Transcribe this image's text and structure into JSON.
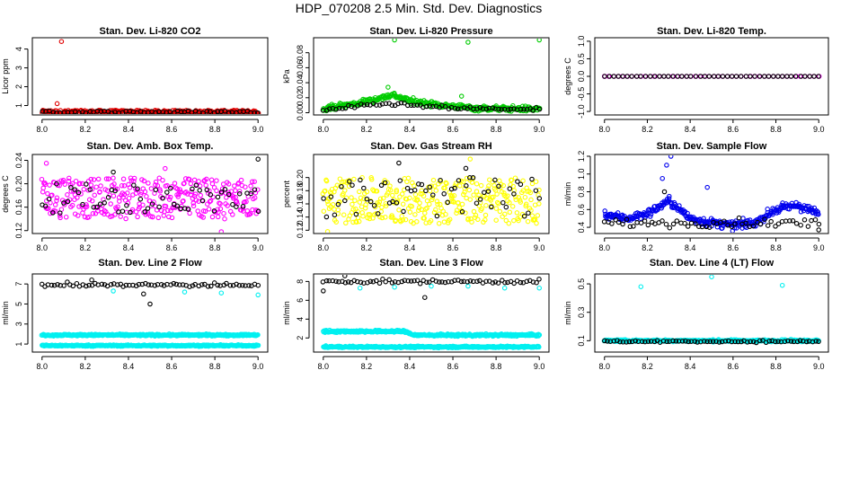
{
  "figure": {
    "title": "HDP_070208  2.5 Min. Std. Dev. Diagnostics",
    "colors": {
      "black": "#000000",
      "red": "#e00000",
      "green": "#00cc00",
      "magenta": "#ff00ff",
      "yellow": "#ffff00",
      "blue": "#0000ee",
      "cyan": "#00f0f0"
    }
  },
  "chart_data": [
    {
      "type": "scatter",
      "title": "Stan. Dev. Li-820 CO2",
      "xlabel": "",
      "ylabel": "Licor ppm",
      "xlim": [
        7.98,
        9.02
      ],
      "ylim": [
        0.5,
        4.6
      ],
      "xticks": [
        8.0,
        8.2,
        8.4,
        8.6,
        8.8,
        9.0
      ],
      "xtick_labels": [
        "8.0",
        "8.2",
        "8.4",
        "8.6",
        "8.8",
        "9.0"
      ],
      "yticks": [
        1,
        2,
        3,
        4
      ],
      "ytick_labels": [
        "1",
        "2",
        "3",
        "4"
      ],
      "series": [
        {
          "name": "main",
          "color": "red",
          "band": {
            "lo": 0.55,
            "hi": 0.75,
            "n": 330
          },
          "points": [
            [
              8.09,
              4.4
            ],
            [
              8.07,
              1.1
            ]
          ]
        },
        {
          "name": "black",
          "color": "black",
          "band": {
            "lo": 0.6,
            "hi": 0.72,
            "n": 60
          },
          "points": []
        }
      ]
    },
    {
      "type": "scatter",
      "title": "Stan. Dev. Li-820 Pressure",
      "xlabel": "",
      "ylabel": "kPa",
      "xlim": [
        7.98,
        9.02
      ],
      "ylim": [
        -0.003,
        0.1
      ],
      "xticks": [
        8.0,
        8.2,
        8.4,
        8.6,
        8.8,
        9.0
      ],
      "xtick_labels": [
        "8.0",
        "8.2",
        "8.4",
        "8.6",
        "8.8",
        "9.0"
      ],
      "yticks": [
        0.0,
        0.02,
        0.04,
        0.06,
        0.08
      ],
      "ytick_labels": [
        "0.00",
        "0.02",
        "0.04",
        "0.06",
        "0.08"
      ],
      "series": [
        {
          "name": "main",
          "color": "green",
          "curve": [
            [
              8.0,
              0.006
            ],
            [
              8.15,
              0.012
            ],
            [
              8.27,
              0.02
            ],
            [
              8.32,
              0.024
            ],
            [
              8.4,
              0.016
            ],
            [
              8.55,
              0.01
            ],
            [
              8.7,
              0.006
            ],
            [
              9.0,
              0.005
            ]
          ],
          "spread": 0.006,
          "n": 320,
          "points": [
            [
              8.33,
              0.097
            ],
            [
              8.67,
              0.094
            ],
            [
              9.0,
              0.097
            ],
            [
              8.3,
              0.034
            ],
            [
              8.64,
              0.022
            ]
          ]
        },
        {
          "name": "black",
          "color": "black",
          "curve": [
            [
              8.0,
              0.004
            ],
            [
              8.3,
              0.012
            ],
            [
              8.6,
              0.006
            ],
            [
              9.0,
              0.004
            ]
          ],
          "spread": 0.004,
          "n": 70,
          "points": []
        }
      ]
    },
    {
      "type": "scatter",
      "title": "Stan. Dev. Li-820 Temp.",
      "xlabel": "",
      "ylabel": "degrees C",
      "xlim": [
        7.98,
        9.02
      ],
      "ylim": [
        -1.1,
        1.1
      ],
      "xticks": [
        8.0,
        8.2,
        8.4,
        8.6,
        8.8,
        9.0
      ],
      "xtick_labels": [
        "8.0",
        "8.2",
        "8.4",
        "8.6",
        "8.8",
        "9.0"
      ],
      "yticks": [
        -1.0,
        -0.5,
        0.0,
        0.5,
        1.0
      ],
      "ytick_labels": [
        "-1.0",
        "-0.5",
        "0.0",
        "0.5",
        "1.0"
      ],
      "series": [
        {
          "name": "main",
          "color": "magenta",
          "flat": 0.0,
          "n": 48,
          "points": [
            [
              8.0,
              0.0
            ]
          ]
        },
        {
          "name": "black",
          "color": "black",
          "flat": 0.0,
          "n": 48,
          "points": []
        }
      ]
    },
    {
      "type": "scatter",
      "title": "Stan. Dev. Amb. Box Temp.",
      "xlabel": "",
      "ylabel": "degrees C",
      "xlim": [
        7.98,
        9.02
      ],
      "ylim": [
        0.115,
        0.25
      ],
      "xticks": [
        8.0,
        8.2,
        8.4,
        8.6,
        8.8,
        9.0
      ],
      "xtick_labels": [
        "8.0",
        "8.2",
        "8.4",
        "8.6",
        "8.8",
        "9.0"
      ],
      "yticks": [
        0.12,
        0.16,
        0.2,
        0.24
      ],
      "ytick_labels": [
        "0.12",
        "0.16",
        "0.20",
        "0.24"
      ],
      "series": [
        {
          "name": "main",
          "color": "magenta",
          "band": {
            "lo": 0.14,
            "hi": 0.21,
            "n": 330
          },
          "points": [
            [
              8.57,
              0.226
            ],
            [
              8.83,
              0.118
            ],
            [
              8.02,
              0.235
            ]
          ]
        },
        {
          "name": "black",
          "color": "black",
          "band": {
            "lo": 0.15,
            "hi": 0.2,
            "n": 60
          },
          "points": [
            [
              9.0,
              0.242
            ],
            [
              8.33,
              0.22
            ]
          ]
        }
      ]
    },
    {
      "type": "scatter",
      "title": "Stan. Dev. Gas Stream RH",
      "xlabel": "",
      "ylabel": "percent",
      "xlim": [
        7.98,
        9.02
      ],
      "ylim": [
        0.115,
        0.235
      ],
      "xticks": [
        8.0,
        8.2,
        8.4,
        8.6,
        8.8,
        9.0
      ],
      "xtick_labels": [
        "8.0",
        "8.2",
        "8.4",
        "8.6",
        "8.8",
        "9.0"
      ],
      "yticks": [
        0.12,
        0.14,
        0.16,
        0.18,
        0.2
      ],
      "ytick_labels": [
        "0.12",
        "0.14",
        "0.16",
        "0.18",
        "0.20"
      ],
      "series": [
        {
          "name": "main",
          "color": "yellow",
          "band": {
            "lo": 0.13,
            "hi": 0.2,
            "n": 330
          },
          "points": [
            [
              8.68,
              0.228
            ],
            [
              8.02,
              0.118
            ]
          ]
        },
        {
          "name": "black",
          "color": "black",
          "band": {
            "lo": 0.14,
            "hi": 0.2,
            "n": 60
          },
          "points": [
            [
              8.35,
              0.222
            ],
            [
              8.66,
              0.214
            ]
          ]
        }
      ]
    },
    {
      "type": "scatter",
      "title": "Stan. Dev. Sample Flow",
      "xlabel": "",
      "ylabel": "ml/min",
      "xlim": [
        7.98,
        9.02
      ],
      "ylim": [
        0.33,
        1.22
      ],
      "xticks": [
        8.0,
        8.2,
        8.4,
        8.6,
        8.8,
        9.0
      ],
      "xtick_labels": [
        "8.0",
        "8.2",
        "8.4",
        "8.6",
        "8.8",
        "9.0"
      ],
      "yticks": [
        0.4,
        0.6,
        0.8,
        1.0,
        1.2
      ],
      "ytick_labels": [
        "0.4",
        "0.6",
        "0.8",
        "1.0",
        "1.2"
      ],
      "series": [
        {
          "name": "main",
          "color": "blue",
          "curve": [
            [
              8.0,
              0.55
            ],
            [
              8.1,
              0.5
            ],
            [
              8.2,
              0.55
            ],
            [
              8.3,
              0.7
            ],
            [
              8.4,
              0.5
            ],
            [
              8.5,
              0.45
            ],
            [
              8.6,
              0.42
            ],
            [
              8.7,
              0.45
            ],
            [
              8.8,
              0.6
            ],
            [
              8.9,
              0.65
            ],
            [
              9.0,
              0.55
            ]
          ],
          "spread": 0.08,
          "n": 330,
          "points": [
            [
              8.31,
              1.2
            ],
            [
              8.29,
              1.1
            ],
            [
              8.27,
              0.95
            ],
            [
              8.48,
              0.85
            ]
          ]
        },
        {
          "name": "black",
          "color": "black",
          "curve": [
            [
              8.0,
              0.45
            ],
            [
              8.5,
              0.45
            ],
            [
              9.0,
              0.45
            ]
          ],
          "spread": 0.08,
          "n": 60,
          "points": [
            [
              8.28,
              0.8
            ],
            [
              9.0,
              0.37
            ]
          ]
        }
      ]
    },
    {
      "type": "scatter",
      "title": "Stan. Dev. Line 2 Flow",
      "xlabel": "",
      "ylabel": "ml/min",
      "xlim": [
        7.98,
        9.02
      ],
      "ylim": [
        0.2,
        8.0
      ],
      "xticks": [
        8.0,
        8.2,
        8.4,
        8.6,
        8.8,
        9.0
      ],
      "xtick_labels": [
        "8.0",
        "8.2",
        "8.4",
        "8.6",
        "8.8",
        "9.0"
      ],
      "yticks": [
        1,
        3,
        5,
        7
      ],
      "ytick_labels": [
        "1",
        "3",
        "5",
        "7"
      ],
      "series": [
        {
          "name": "cyan-upper",
          "color": "cyan",
          "flat": 1.9,
          "spread": 0.15,
          "n": 400,
          "points": [
            [
              8.33,
              6.3
            ],
            [
              8.66,
              6.2
            ],
            [
              8.83,
              6.1
            ],
            [
              9.0,
              5.9
            ]
          ]
        },
        {
          "name": "cyan-lower",
          "color": "cyan",
          "flat": 0.85,
          "spread": 0.12,
          "n": 400,
          "points": []
        },
        {
          "name": "black",
          "color": "black",
          "flat": 6.9,
          "spread": 0.35,
          "n": 70,
          "points": [
            [
              8.5,
              5.0
            ],
            [
              8.47,
              6.0
            ],
            [
              8.23,
              7.4
            ]
          ]
        }
      ]
    },
    {
      "type": "scatter",
      "title": "Stan. Dev. Line 3 Flow",
      "xlabel": "",
      "ylabel": "ml/min",
      "xlim": [
        7.98,
        9.02
      ],
      "ylim": [
        0.5,
        8.8
      ],
      "xticks": [
        8.0,
        8.2,
        8.4,
        8.6,
        8.8,
        9.0
      ],
      "xtick_labels": [
        "8.0",
        "8.2",
        "8.4",
        "8.6",
        "8.8",
        "9.0"
      ],
      "yticks": [
        2,
        4,
        6,
        8
      ],
      "ytick_labels": [
        "2",
        "4",
        "6",
        "8"
      ],
      "series": [
        {
          "name": "cyan-upper",
          "color": "cyan",
          "curve": [
            [
              8.0,
              2.7
            ],
            [
              8.38,
              2.7
            ],
            [
              8.42,
              2.3
            ],
            [
              9.0,
              2.3
            ]
          ],
          "spread": 0.2,
          "n": 400,
          "points": [
            [
              8.17,
              7.3
            ],
            [
              8.33,
              7.4
            ],
            [
              8.5,
              7.5
            ],
            [
              8.67,
              7.5
            ],
            [
              8.84,
              7.3
            ],
            [
              9.0,
              7.3
            ]
          ]
        },
        {
          "name": "cyan-lower",
          "color": "cyan",
          "flat": 1.05,
          "spread": 0.15,
          "n": 400,
          "points": []
        },
        {
          "name": "black",
          "color": "black",
          "flat": 8.0,
          "spread": 0.35,
          "n": 70,
          "points": [
            [
              8.47,
              6.3
            ],
            [
              8.1,
              8.6
            ],
            [
              8.0,
              7.0
            ]
          ]
        }
      ]
    },
    {
      "type": "scatter",
      "title": "Stan. Dev. Line 4 (LT) Flow",
      "xlabel": "",
      "ylabel": "ml/min",
      "xlim": [
        7.98,
        9.02
      ],
      "ylim": [
        0.02,
        0.57
      ],
      "xticks": [
        8.0,
        8.2,
        8.4,
        8.6,
        8.8,
        9.0
      ],
      "xtick_labels": [
        "8.0",
        "8.2",
        "8.4",
        "8.6",
        "8.8",
        "9.0"
      ],
      "yticks": [
        0.1,
        0.3,
        0.5
      ],
      "ytick_labels": [
        "0.1",
        "0.3",
        "0.5"
      ],
      "series": [
        {
          "name": "main",
          "color": "cyan",
          "flat": 0.1,
          "spread": 0.012,
          "n": 400,
          "points": [
            [
              8.17,
              0.48
            ],
            [
              8.5,
              0.55
            ],
            [
              8.83,
              0.49
            ]
          ]
        },
        {
          "name": "black",
          "color": "black",
          "flat": 0.095,
          "spread": 0.012,
          "n": 70,
          "points": []
        }
      ]
    }
  ]
}
